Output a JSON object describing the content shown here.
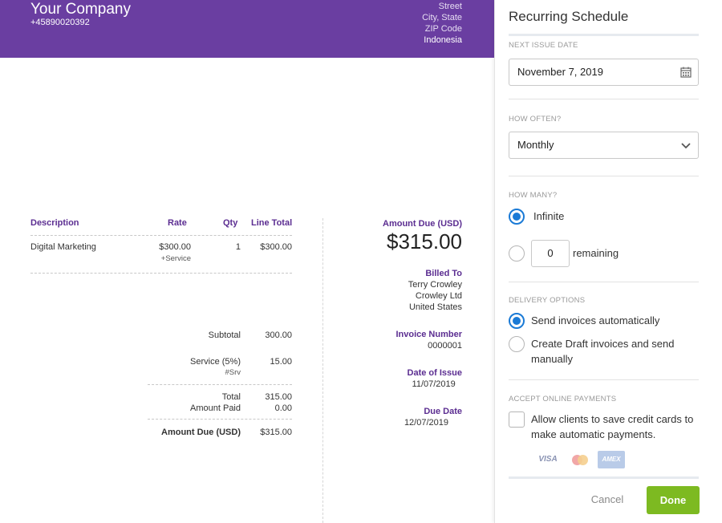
{
  "invoice": {
    "company_name": "Your Company",
    "phone": "+45890020392",
    "address": {
      "street": "Street",
      "city_state": "City, State",
      "zip": "ZIP Code",
      "country": "Indonesia"
    },
    "table": {
      "headers": {
        "description": "Description",
        "rate": "Rate",
        "qty": "Qty",
        "line_total": "Line Total"
      },
      "rows": [
        {
          "description": "Digital Marketing",
          "rate": "$300.00",
          "rate_note": "+Service",
          "qty": "1",
          "line_total": "$300.00"
        }
      ]
    },
    "totals": {
      "subtotal_label": "Subtotal",
      "subtotal": "300.00",
      "service_label": "Service (5%)",
      "service_note": "#Srv",
      "service": "15.00",
      "total_label": "Total",
      "total": "315.00",
      "paid_label": "Amount Paid",
      "paid": "0.00",
      "due_label": "Amount Due (USD)",
      "due": "$315.00"
    },
    "summary": {
      "amount_due_label": "Amount Due (USD)",
      "amount_due": "$315.00",
      "billed_to_label": "Billed To",
      "billed_to": [
        "Terry Crowley",
        "Crowley Ltd",
        "United States"
      ],
      "invoice_number_label": "Invoice Number",
      "invoice_number": "0000001",
      "date_of_issue_label": "Date of Issue",
      "date_of_issue": "11/07/2019",
      "due_date_label": "Due Date",
      "due_date": "12/07/2019"
    }
  },
  "panel": {
    "title": "Recurring Schedule",
    "next_issue_label": "NEXT ISSUE DATE",
    "next_issue_value": "November 7, 2019",
    "next_issue_icon": "calendar-icon",
    "how_often_label": "HOW OFTEN?",
    "how_often_value": "Monthly",
    "how_many_label": "HOW MANY?",
    "infinite_label": "Infinite",
    "remaining_value": "0",
    "remaining_label": "remaining",
    "delivery_label": "DELIVERY OPTIONS",
    "delivery_auto": "Send invoices automatically",
    "delivery_draft_line1": "Create Draft invoices and send",
    "delivery_draft_line2": "manually",
    "payments_label": "ACCEPT ONLINE PAYMENTS",
    "payments_text_line1": "Allow clients to save credit cards to",
    "payments_text_line2": "make automatic payments.",
    "cards": {
      "visa": "VISA",
      "amex": "AMEX",
      "mastercard_icon": "mastercard-icon"
    },
    "cancel": "Cancel",
    "done": "Done"
  },
  "colors": {
    "header_purple": "#6a3ea1",
    "label_purple": "#5b2d91",
    "radio_blue": "#1a7ad6",
    "done_green": "#7dba21"
  }
}
